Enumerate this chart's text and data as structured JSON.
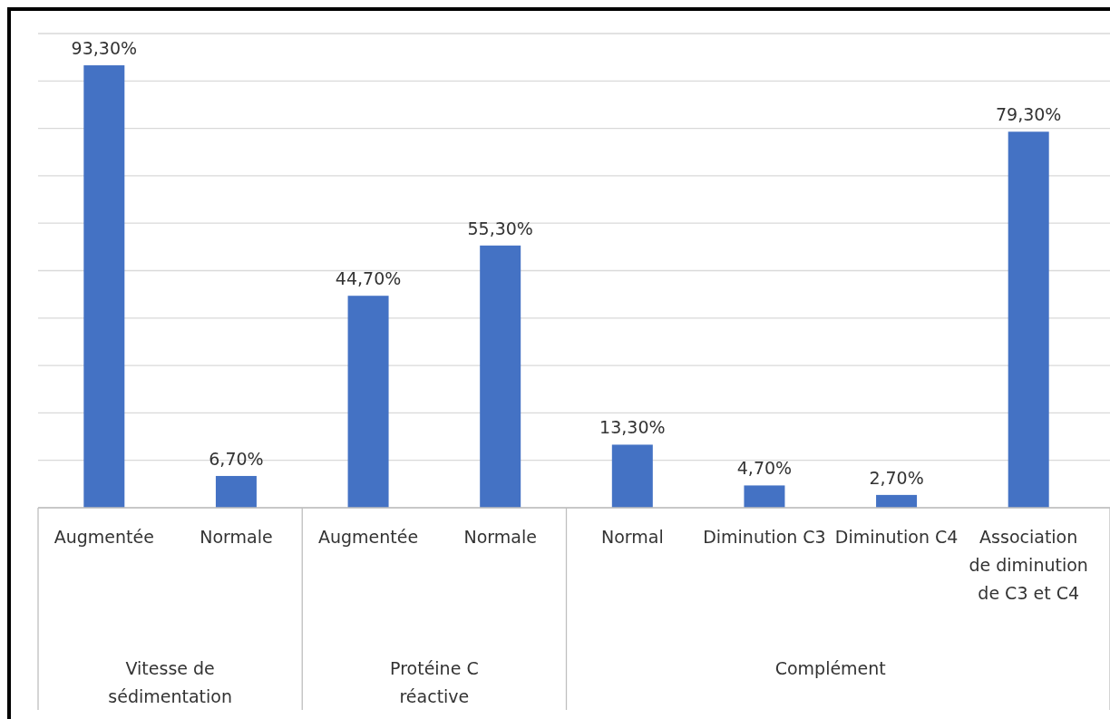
{
  "chart_data": {
    "type": "bar",
    "categories": [
      "Augmentée",
      "Normale",
      "Augmentée",
      "Normale",
      "Normal",
      "Diminution C3",
      "Diminution C4",
      "Association de diminution de C3 et C4"
    ],
    "values": [
      93.3,
      6.7,
      44.7,
      55.3,
      13.3,
      4.7,
      2.7,
      79.3
    ],
    "value_labels": [
      "93,30%",
      "6,70%",
      "44,70%",
      "55,30%",
      "13,30%",
      "4,70%",
      "2,70%",
      "79,30%"
    ],
    "color": "#4472c4",
    "ylim": [
      0,
      100
    ],
    "yticks": [
      {
        "value": 0,
        "label": null
      },
      {
        "value": 10,
        "label": null
      },
      {
        "value": 20,
        "label": null
      },
      {
        "value": 30,
        "label": null
      },
      {
        "value": 40,
        "label": null
      },
      {
        "value": 50,
        "label": null
      },
      {
        "value": 60,
        "label": null
      },
      {
        "value": 70,
        "label": null
      },
      {
        "value": 80,
        "label": null
      },
      {
        "value": 90,
        "label": null
      },
      {
        "value": 100,
        "label": null
      }
    ],
    "grid": "y",
    "tick_labels": "x",
    "annotations": [
      "Vitesse de sédimentation",
      "Protéine C réactive",
      "Complément"
    ]
  }
}
